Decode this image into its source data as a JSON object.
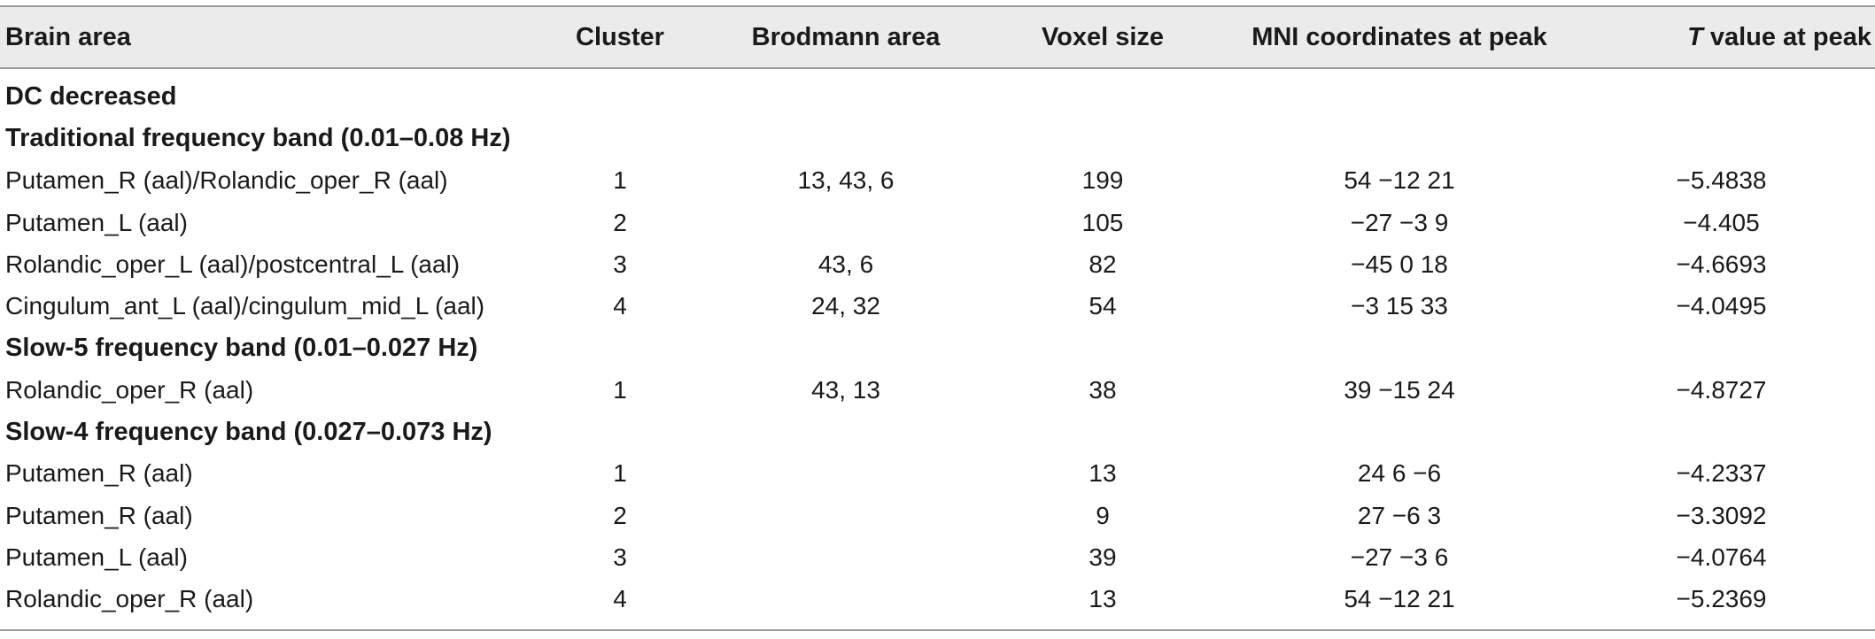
{
  "table": {
    "headers": {
      "brain_area": "Brain area",
      "cluster": "Cluster",
      "brodmann": "Brodmann area",
      "voxel": "Voxel size",
      "mni": "MNI coordinates at peak",
      "t_prefix": "T",
      "t_suffix": " value at peak"
    },
    "section_dc": "DC decreased",
    "section_traditional": "Traditional frequency band (0.01–0.08 Hz)",
    "traditional_rows": [
      {
        "area": "Putamen_R (aal)/Rolandic_oper_R (aal)",
        "cluster": "1",
        "brodmann": "13, 43, 6",
        "voxel": "199",
        "mni": "54 −12 21",
        "t": "−5.4838"
      },
      {
        "area": "Putamen_L (aal)",
        "cluster": "2",
        "brodmann": "",
        "voxel": "105",
        "mni": "−27 −3 9",
        "t": "−4.405"
      },
      {
        "area": "Rolandic_oper_L (aal)/postcentral_L (aal)",
        "cluster": "3",
        "brodmann": "43, 6",
        "voxel": "82",
        "mni": "−45 0 18",
        "t": "−4.6693"
      },
      {
        "area": "Cingulum_ant_L (aal)/cingulum_mid_L (aal)",
        "cluster": "4",
        "brodmann": "24, 32",
        "voxel": "54",
        "mni": "−3 15 33",
        "t": "−4.0495"
      }
    ],
    "section_slow5": "Slow-5 frequency band (0.01–0.027 Hz)",
    "slow5_rows": [
      {
        "area": "Rolandic_oper_R (aal)",
        "cluster": "1",
        "brodmann": "43, 13",
        "voxel": "38",
        "mni": "39 −15 24",
        "t": "−4.8727"
      }
    ],
    "section_slow4": "Slow-4 frequency band (0.027–0.073 Hz)",
    "slow4_rows": [
      {
        "area": "Putamen_R (aal)",
        "cluster": "1",
        "brodmann": "",
        "voxel": "13",
        "mni": "24 6 −6",
        "t": "−4.2337"
      },
      {
        "area": "Putamen_R (aal)",
        "cluster": "2",
        "brodmann": "",
        "voxel": "9",
        "mni": "27 −6 3",
        "t": "−3.3092"
      },
      {
        "area": "Putamen_L (aal)",
        "cluster": "3",
        "brodmann": "",
        "voxel": "39",
        "mni": "−27 −3 6",
        "t": "−4.0764"
      },
      {
        "area": "Rolandic_oper_R (aal)",
        "cluster": "4",
        "brodmann": "",
        "voxel": "13",
        "mni": "54 −12 21",
        "t": "−5.2369"
      }
    ]
  }
}
